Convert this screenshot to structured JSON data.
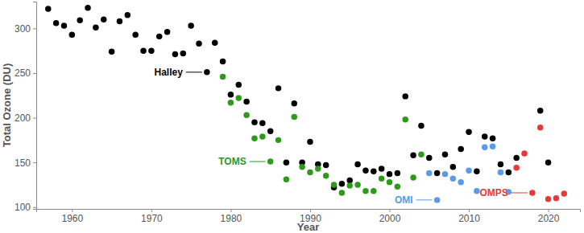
{
  "chart_data": {
    "type": "scatter",
    "x_label": "Year",
    "y_label": "Total Ozone (DU)",
    "xlim": [
      1955.5,
      2024
    ],
    "ylim": [
      98,
      330
    ],
    "xticks": [
      1960,
      1970,
      1980,
      1990,
      2000,
      2010,
      2020
    ],
    "yticks": [
      100,
      150,
      200,
      250,
      300
    ],
    "grid": false,
    "marker": "circle",
    "series": [
      {
        "name": "Halley",
        "color": "#000000",
        "label_at": {
          "x": 1977,
          "y": 251
        },
        "x": [
          1957,
          1958,
          1959,
          1960,
          1961,
          1962,
          1963,
          1964,
          1965,
          1966,
          1967,
          1968,
          1969,
          1970,
          1971,
          1972,
          1973,
          1974,
          1975,
          1976,
          1977,
          1978,
          1979,
          1980,
          1981,
          1982,
          1983,
          1984,
          1985,
          1986,
          1987,
          1988,
          1989,
          1990,
          1991,
          1992,
          1993,
          1994,
          1995,
          1996,
          1997,
          1998,
          1999,
          2000,
          2001,
          2002,
          2003,
          2004,
          2005,
          2006,
          2007,
          2008,
          2009,
          2010,
          2011,
          2012,
          2013,
          2014,
          2015,
          2016,
          2019,
          2020
        ],
        "values": [
          322,
          306,
          303,
          293,
          309,
          323,
          301,
          310,
          274,
          308,
          315,
          293,
          275,
          275,
          291,
          296,
          271,
          272,
          303,
          283,
          251,
          284,
          263,
          226,
          237,
          218,
          195,
          194,
          185,
          233,
          150,
          216,
          150,
          173,
          148,
          147,
          122,
          126,
          130,
          148,
          141,
          140,
          143,
          137,
          138,
          224,
          158,
          191,
          155,
          138,
          159,
          145,
          165,
          184,
          140,
          179,
          177,
          148,
          139,
          155,
          208,
          150
        ]
      },
      {
        "name": "TOMS",
        "color": "#2e9a1c",
        "label_at": {
          "x": 1985,
          "y": 151
        },
        "x": [
          1979,
          1980,
          1981,
          1982,
          1983,
          1984,
          1985,
          1986,
          1987,
          1988,
          1989,
          1990,
          1991,
          1992,
          1993,
          1994,
          1995,
          1996,
          1997,
          1998,
          1999,
          2000,
          2001,
          2002,
          2003,
          2004
        ],
        "values": [
          246,
          217,
          222,
          203,
          177,
          179,
          151,
          175,
          131,
          201,
          145,
          139,
          143,
          135,
          125,
          116,
          124,
          125,
          118,
          118,
          132,
          128,
          123,
          198,
          133,
          159
        ]
      },
      {
        "name": "OMI",
        "color": "#5a9ae8",
        "label_at": {
          "x": 2006,
          "y": 108
        },
        "x": [
          2005,
          2006,
          2007,
          2008,
          2009,
          2010,
          2011,
          2012,
          2013,
          2014,
          2015
        ],
        "values": [
          138,
          108,
          137,
          132,
          128,
          141,
          118,
          167,
          168,
          139,
          117
        ]
      },
      {
        "name": "OMPS",
        "color": "#e8393a",
        "label_at": {
          "x": 2018,
          "y": 116
        },
        "x": [
          2016,
          2017,
          2018,
          2019,
          2020,
          2021,
          2022
        ],
        "values": [
          144,
          160,
          116,
          189,
          109,
          110,
          115
        ]
      }
    ]
  }
}
